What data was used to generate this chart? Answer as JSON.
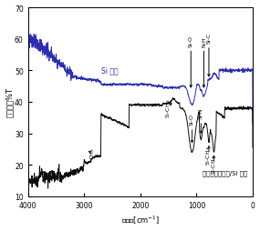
{
  "xlabel": "波数　[cm⁻¹]",
  "ylabel": "透過率　%T",
  "xlim": [
    4000,
    0
  ],
  "ylim": [
    10,
    70
  ],
  "yticks": [
    10,
    20,
    30,
    40,
    50,
    60,
    70
  ],
  "xticks": [
    4000,
    3000,
    2000,
    1000,
    0
  ],
  "si_label": "Si 基板",
  "plasma_label": "プラズマ重合膜/Si 基板",
  "si_color": "#2222aa",
  "plasma_color": "#000000",
  "background_color": "#ffffff"
}
